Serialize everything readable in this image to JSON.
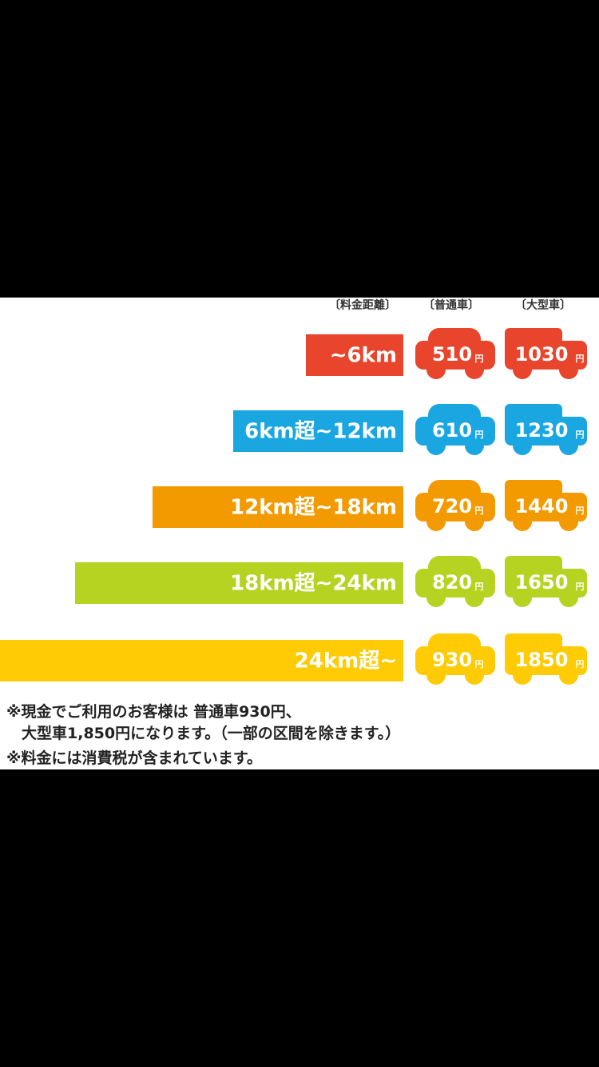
{
  "header": {
    "distance": "〔料金距離〕",
    "regular": "〔普通車〕",
    "large": "〔大型車〕"
  },
  "unit": "円",
  "rows": [
    {
      "label": "~6km",
      "regular": "510",
      "large": "1030",
      "color": "#e8452c"
    },
    {
      "label": "6km超~12km",
      "regular": "610",
      "large": "1230",
      "color": "#1aa6e0"
    },
    {
      "label": "12km超~18km",
      "regular": "720",
      "large": "1440",
      "color": "#f39a00"
    },
    {
      "label": "18km超~24km",
      "regular": "820",
      "large": "1650",
      "color": "#b6d322"
    },
    {
      "label": "24km超~",
      "regular": "930",
      "large": "1850",
      "color": "#ffcb05"
    }
  ],
  "notes": [
    "※現金でご利用のお客様は 普通車930円、",
    "　大型車1,850円になります。（一部の区間を除きます。）",
    "※料金には消費税が含まれています。"
  ]
}
